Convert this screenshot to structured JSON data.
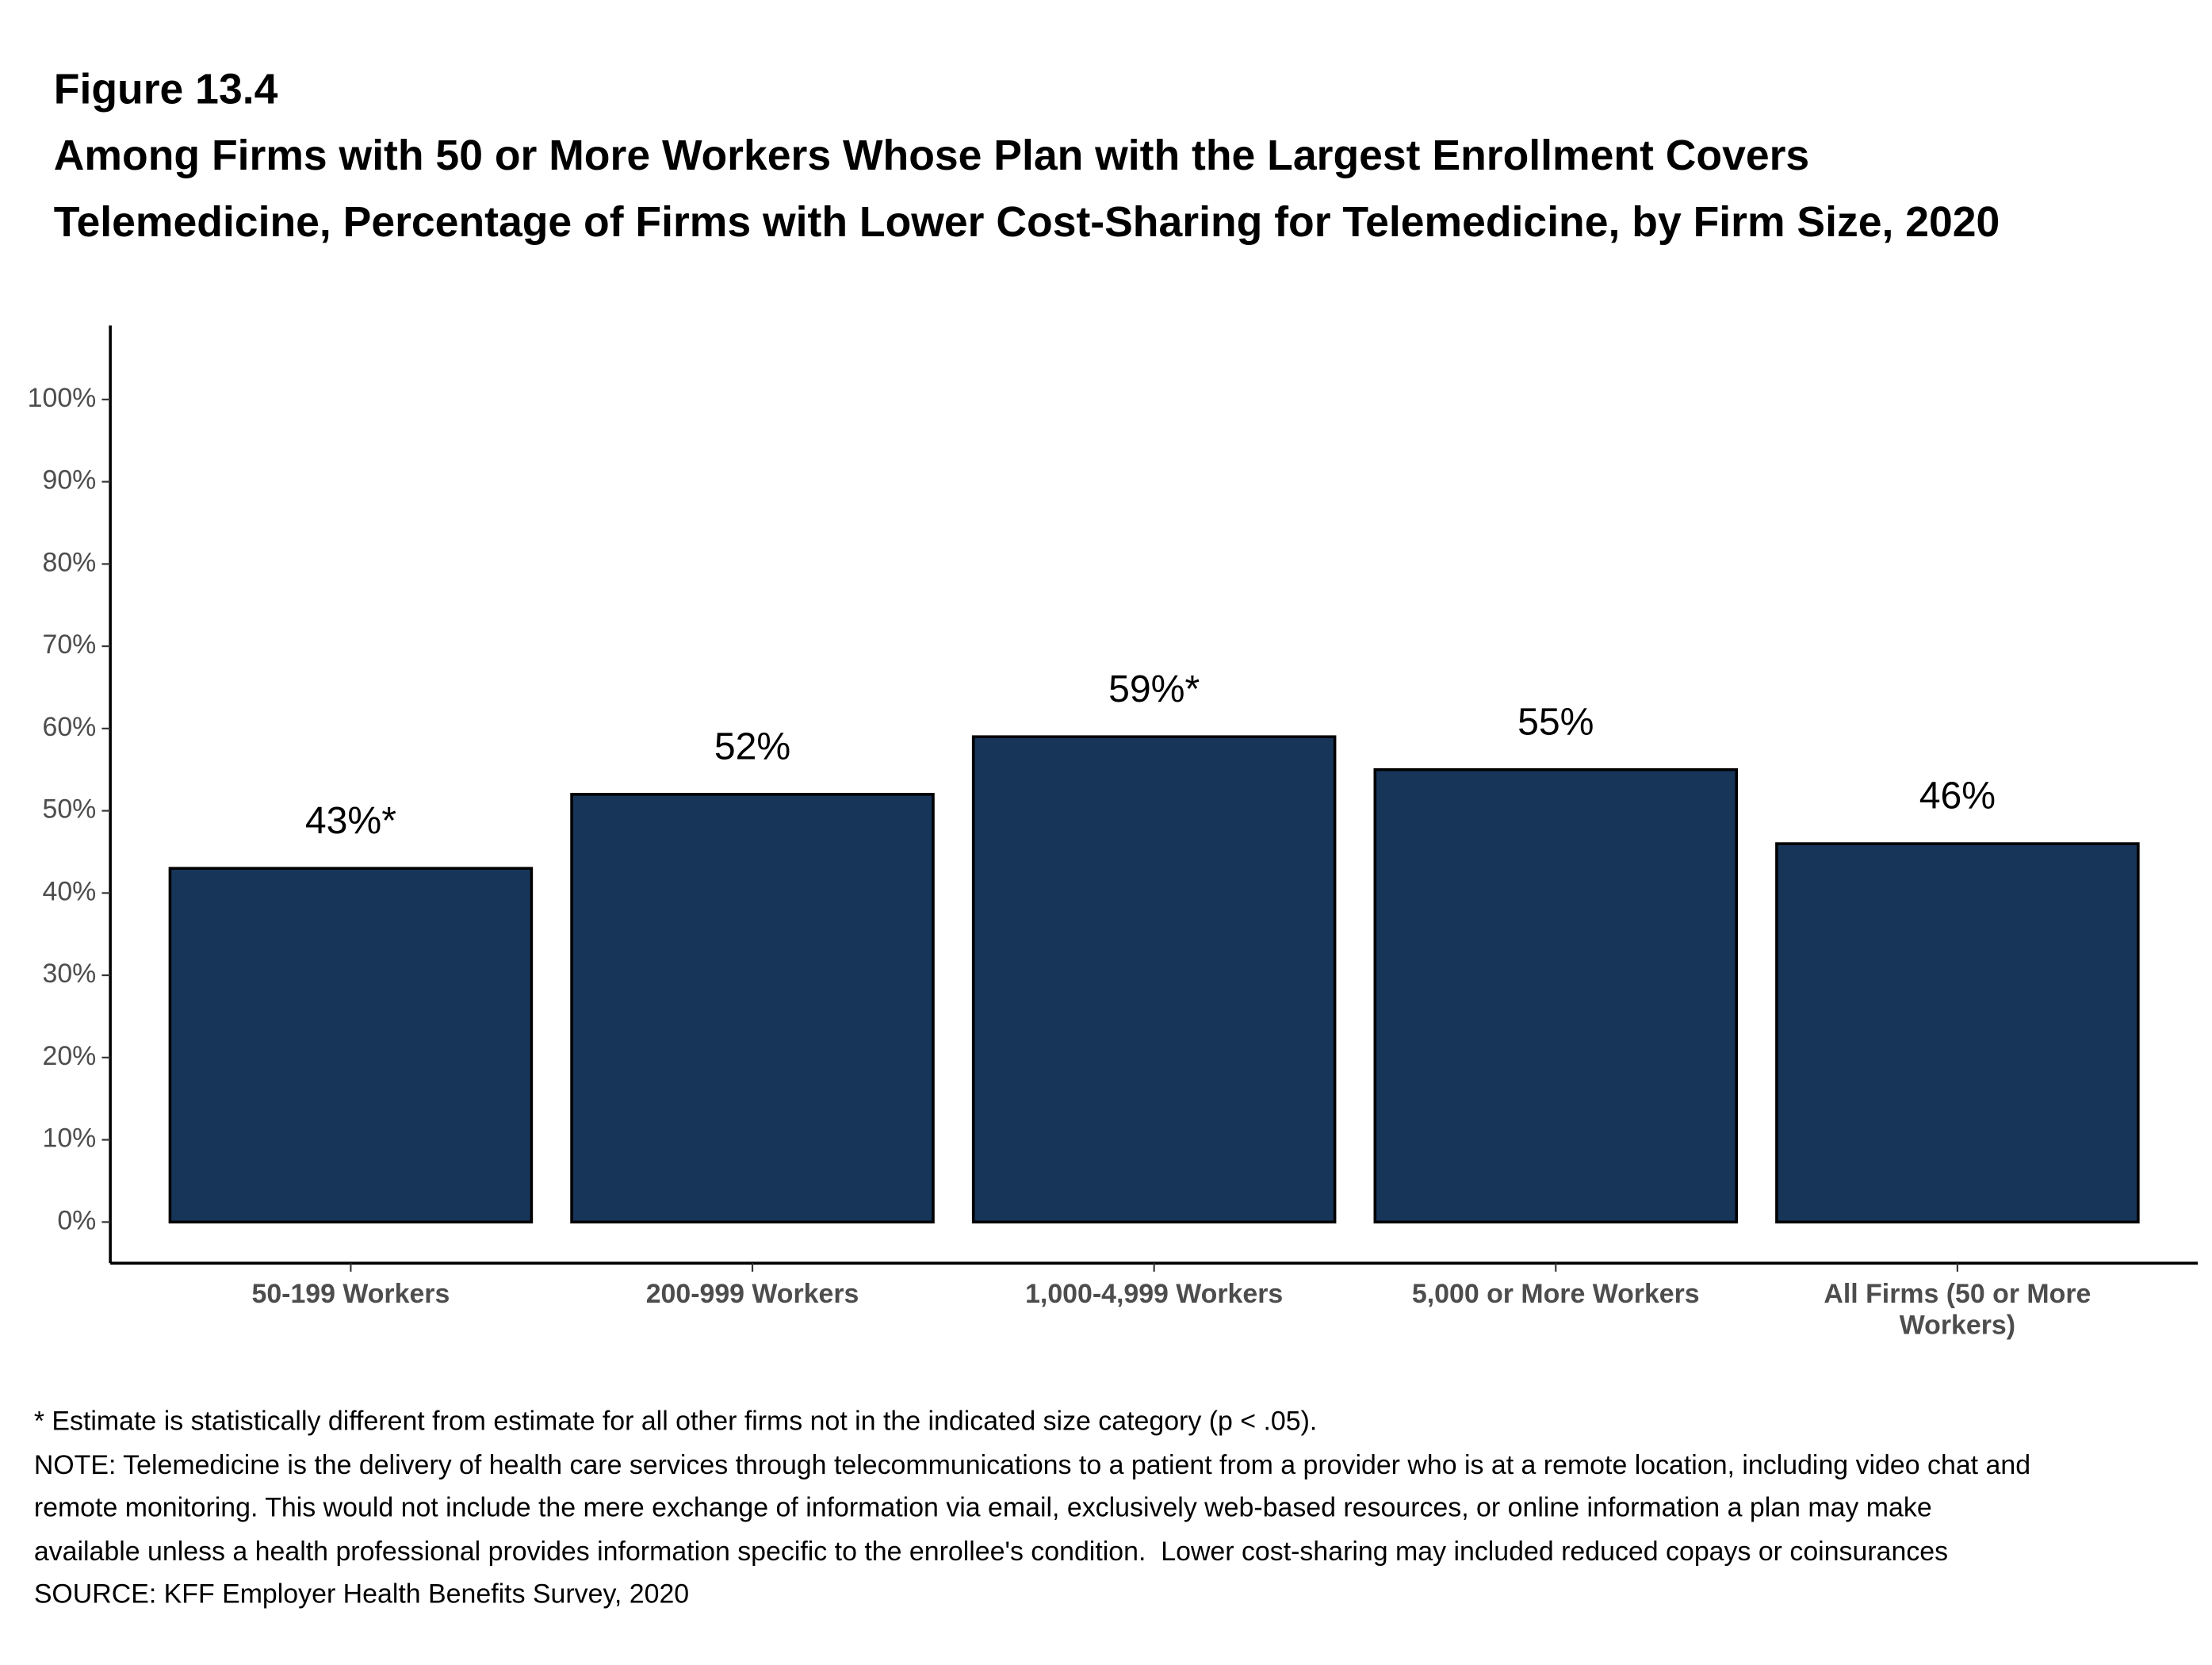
{
  "chart_data": {
    "type": "bar",
    "figure_label": "Figure 13.4",
    "title": "Among Firms with 50 or More Workers Whose Plan with the Largest Enrollment Covers Telemedicine, Percentage of Firms with Lower Cost-Sharing for Telemedicine, by Firm Size, 2020",
    "categories": [
      "50-199 Workers",
      "200-999 Workers",
      "1,000-4,999 Workers",
      "5,000 or More Workers",
      "All Firms (50 or More Workers)"
    ],
    "values": [
      43,
      52,
      59,
      55,
      46
    ],
    "value_labels": [
      "43%*",
      "52%",
      "59%*",
      "55%",
      "46%"
    ],
    "color": "#173559",
    "ylim": [
      -5,
      109
    ],
    "yticks": [
      {
        "value": 0,
        "label": "0%"
      },
      {
        "value": 10,
        "label": "10%"
      },
      {
        "value": 20,
        "label": "20%"
      },
      {
        "value": 30,
        "label": "30%"
      },
      {
        "value": 40,
        "label": "40%"
      },
      {
        "value": 50,
        "label": "50%"
      },
      {
        "value": 60,
        "label": "60%"
      },
      {
        "value": 70,
        "label": "70%"
      },
      {
        "value": 80,
        "label": "80%"
      },
      {
        "value": 90,
        "label": "90%"
      },
      {
        "value": 100,
        "label": "100%"
      }
    ],
    "grid": false,
    "notes": [
      "* Estimate is statistically different from estimate for all other firms not in the indicated size category (p < .05).",
      "NOTE: Telemedicine is the delivery of health care services through telecommunications to a patient from a provider who is at a remote location, including video chat and remote monitoring. This would not include the mere exchange of information via email, exclusively web-based resources, or online information a plan may make available unless a health professional provides information specific to the enrollee's condition.  Lower cost-sharing may included reduced copays or coinsurances",
      "SOURCE: KFF Employer Health Benefits Survey, 2020"
    ]
  }
}
